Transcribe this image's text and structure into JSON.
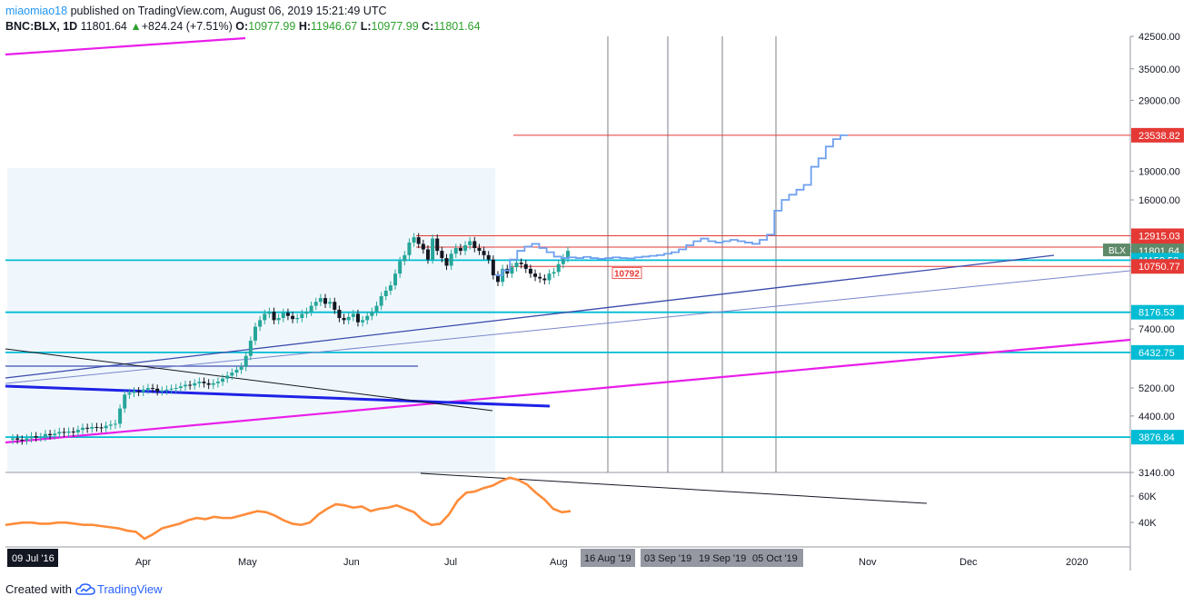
{
  "header": {
    "user": "miaomiao18",
    "published": " published on TradingView.com, August 06, 2019 15:21:49 UTC",
    "symbol": "BNC:BLX, 1D",
    "last": "11801.64",
    "change_arrow": "▲",
    "change": "+824.24 (+7.51%)",
    "o_label": "O:",
    "o": "10977.99",
    "h_label": "H:",
    "h": "11946.67",
    "l_label": "L:",
    "l": "10977.99",
    "c_label": "C:",
    "c": "11801.64"
  },
  "footer": {
    "created": "Created with",
    "brand": "TradingView"
  },
  "colors": {
    "up": "#26a69a",
    "down": "#131722",
    "projection": "#6fa0f0",
    "rsi": "#ff8c3a",
    "cyan": "#00bcd4",
    "magenta": "#e91ee9",
    "red": "#e53935"
  },
  "chart_data": {
    "type": "candlestick",
    "symbol": "BNC:BLX",
    "interval": "1D",
    "price_scale": "log",
    "ylim": [
      3140,
      42500
    ],
    "y_ticks": [
      42500,
      35000,
      29000,
      23538.82,
      19000,
      16000,
      12915.03,
      12060.92,
      11801.64,
      11158.52,
      10750.77,
      8176.53,
      7400,
      6432.75,
      5200,
      4400,
      3876.84,
      3140
    ],
    "y_tick_labels": [
      "42500.00",
      "35000.00",
      "29000.00",
      "23538.82",
      "19000.00",
      "16000.00",
      "12915.03",
      "12060.92",
      "11801.64",
      "11158.52",
      "10750.77",
      "8176.53",
      "7400.00",
      "6432.75",
      "5200.00",
      "4400.00",
      "3876.84",
      "3140.00"
    ],
    "x_labels": [
      "09 Jul '16",
      "Apr",
      "May",
      "Jun",
      "Jul",
      "Aug",
      "16 Aug '19",
      "03 Sep '19",
      "19 Sep '19",
      "05 Oct '19",
      "Nov",
      "Dec",
      "2020"
    ],
    "price_labels": [
      {
        "value": 23538.82,
        "text": "23538.82",
        "style": "red"
      },
      {
        "value": 12915.03,
        "text": "12915.03",
        "style": "red"
      },
      {
        "value": 12060.92,
        "text": "12060.92",
        "style": "red"
      },
      {
        "value": 11801.64,
        "text": "11801.64",
        "style": "gray",
        "tag": "BLX"
      },
      {
        "value": 11158.52,
        "text": "11158.52",
        "style": "cyan"
      },
      {
        "value": 10750.77,
        "text": "10750.77",
        "style": "red"
      },
      {
        "value": 8176.53,
        "text": "8176.53",
        "style": "cyan"
      },
      {
        "value": 6432.75,
        "text": "6432.75",
        "style": "cyan"
      },
      {
        "value": 3876.84,
        "text": "3876.84",
        "style": "cyan"
      }
    ],
    "annotation": {
      "text": "10792",
      "value": 10792
    },
    "candles_close": [
      3850,
      3820,
      3800,
      3850,
      3900,
      3870,
      3880,
      3950,
      3920,
      3960,
      4000,
      3980,
      4010,
      3990,
      4050,
      4100,
      4080,
      4120,
      4110,
      4090,
      4150,
      4180,
      4200,
      4600,
      5000,
      5050,
      5100,
      5080,
      5150,
      5200,
      5180,
      5100,
      5120,
      5150,
      5180,
      5200,
      5250,
      5300,
      5280,
      5350,
      5400,
      5350,
      5300,
      5350,
      5400,
      5500,
      5600,
      5700,
      5800,
      5900,
      6300,
      6900,
      7500,
      7800,
      8100,
      8200,
      7800,
      7900,
      8150,
      8000,
      7850,
      7900,
      8100,
      8200,
      8500,
      8700,
      8900,
      8600,
      8700,
      8300,
      7900,
      7800,
      7950,
      8100,
      7700,
      7800,
      8000,
      8200,
      8500,
      9000,
      9300,
      9600,
      10300,
      11100,
      11500,
      12400,
      12800,
      12300,
      11900,
      11200,
      12700,
      11800,
      11300,
      10800,
      11600,
      12000,
      11800,
      12200,
      12500,
      12000,
      11800,
      11500,
      11200,
      10200,
      9800,
      10600,
      10300,
      10700,
      11000,
      10900,
      10600,
      10300,
      10100,
      10000,
      9900,
      10300,
      10400,
      10900,
      11300,
      11800
    ],
    "candles_open": [
      3820,
      3850,
      3820,
      3800,
      3850,
      3900,
      3870,
      3880,
      3950,
      3920,
      3960,
      4000,
      3980,
      4010,
      3990,
      4050,
      4100,
      4080,
      4120,
      4110,
      4090,
      4150,
      4180,
      4200,
      4600,
      5000,
      5050,
      5100,
      5080,
      5150,
      5200,
      5180,
      5100,
      5120,
      5150,
      5180,
      5200,
      5250,
      5300,
      5280,
      5350,
      5400,
      5350,
      5300,
      5350,
      5400,
      5500,
      5600,
      5700,
      5800,
      5900,
      6300,
      6900,
      7500,
      7800,
      8100,
      8200,
      7800,
      7900,
      8150,
      8000,
      7850,
      7900,
      8100,
      8200,
      8500,
      8700,
      8900,
      8600,
      8700,
      8300,
      7900,
      7800,
      7950,
      8100,
      7700,
      7800,
      8000,
      8200,
      8500,
      9000,
      9300,
      9600,
      10300,
      11100,
      11500,
      12400,
      12800,
      12300,
      11900,
      11200,
      12700,
      11800,
      11300,
      10800,
      11600,
      12000,
      11800,
      12200,
      12500,
      12000,
      11800,
      11500,
      11200,
      10200,
      9800,
      10600,
      10300,
      10700,
      11000,
      10900,
      10600,
      10300,
      10100,
      10000,
      9900,
      10300,
      10400,
      10900,
      11300
    ],
    "projection": [
      10200,
      10500,
      11200,
      11800,
      12100,
      12300,
      12000,
      11700,
      11400,
      11300,
      11350,
      11300,
      11380,
      11300,
      11250,
      11300,
      11350,
      11300,
      11280,
      11350,
      11400,
      11450,
      11500,
      11600,
      11700,
      11900,
      12200,
      12500,
      12700,
      12500,
      12400,
      12500,
      12600,
      12500,
      12400,
      12300,
      12600,
      13000,
      15000,
      16000,
      16500,
      17000,
      17500,
      19500,
      20500,
      22000,
      23000,
      23538
    ],
    "rsi": {
      "ticks": [
        "60K",
        "40K"
      ],
      "values": [
        36,
        37,
        38,
        38,
        37,
        37,
        38,
        38,
        37,
        36,
        36,
        35,
        34,
        33,
        31,
        30,
        24,
        28,
        33,
        35,
        37,
        40,
        42,
        41,
        43,
        42,
        42,
        44,
        46,
        48,
        47,
        44,
        40,
        37,
        36,
        38,
        45,
        50,
        54,
        53,
        51,
        52,
        48,
        50,
        51,
        53,
        50,
        47,
        40,
        36,
        37,
        45,
        57,
        64,
        65,
        68,
        70,
        74,
        77,
        75,
        71,
        64,
        58,
        50,
        47,
        48
      ]
    }
  }
}
